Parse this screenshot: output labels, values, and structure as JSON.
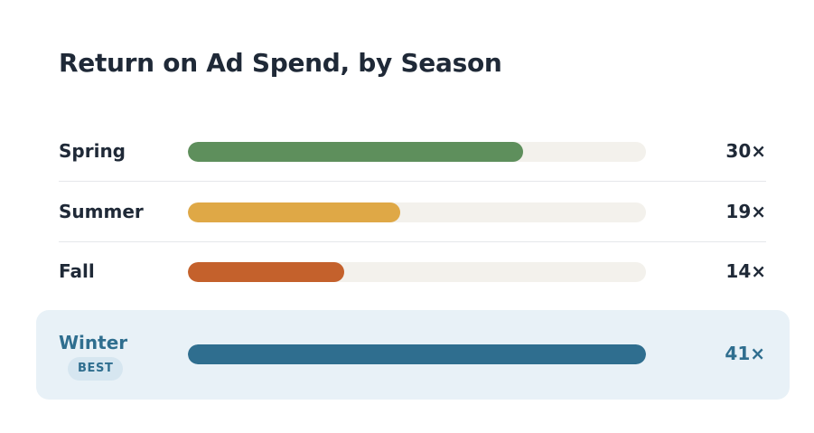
{
  "title": "Return on Ad Spend, by Season",
  "chart_data": {
    "type": "bar",
    "orientation": "horizontal",
    "title": "Return on Ad Spend, by Season",
    "categories": [
      "Spring",
      "Summer",
      "Fall",
      "Winter"
    ],
    "values": [
      30,
      19,
      14,
      41
    ],
    "value_labels": [
      "30×",
      "19×",
      "14×",
      "41×"
    ],
    "xlim": [
      0,
      41
    ],
    "colors": [
      "#5e8f5c",
      "#dfa846",
      "#c4612c",
      "#2f6e8f"
    ],
    "track_color": "#f3f1ec",
    "highlight": {
      "category": "Winter",
      "badge": "BEST",
      "background": "#e8f1f7",
      "text_color": "#2f6e8f"
    },
    "grid": false,
    "legend": "none"
  }
}
